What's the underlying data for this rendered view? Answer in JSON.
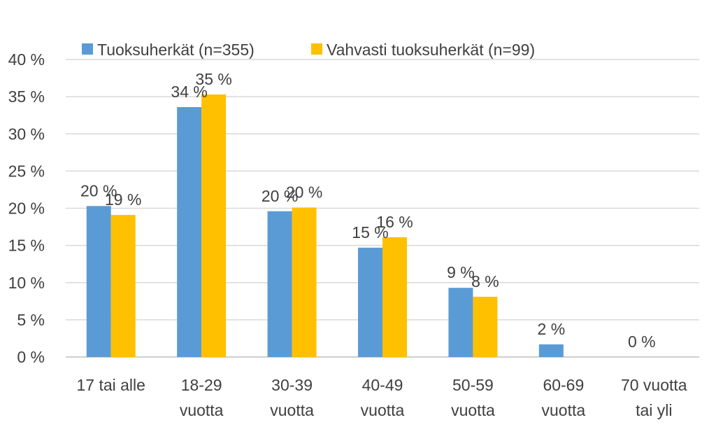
{
  "chart_data": {
    "type": "bar",
    "categories": [
      [
        "17 tai alle"
      ],
      [
        "18-29",
        "vuotta"
      ],
      [
        "30-39",
        "vuotta"
      ],
      [
        "40-49",
        "vuotta"
      ],
      [
        "50-59",
        "vuotta"
      ],
      [
        "60-69",
        "vuotta"
      ],
      [
        "70 vuotta",
        "tai yli"
      ]
    ],
    "series": [
      {
        "name": "Tuoksuherkät (n=355)",
        "color": "#5B9BD5",
        "values": [
          20.3,
          33.6,
          19.6,
          14.7,
          9.3,
          1.7,
          0
        ],
        "labels": [
          "20 %",
          "34 %",
          "20 %",
          "15 %",
          "9 %",
          "2 %",
          "0 %"
        ]
      },
      {
        "name": "Vahvasti tuoksuherkät (n=99)",
        "color": "#FFC000",
        "values": [
          19.1,
          35.3,
          20.1,
          16.1,
          8.1,
          0,
          0
        ],
        "labels": [
          "19 %",
          "35 %",
          "20 %",
          "16 %",
          "8 %",
          "",
          ""
        ]
      }
    ],
    "yticks": [
      "0 %",
      "5 %",
      "10 %",
      "15 %",
      "20 %",
      "25 %",
      "30 %",
      "35 %",
      "40 %"
    ],
    "ylim": [
      0,
      40
    ],
    "grid": true,
    "legend_position": "top",
    "title": "",
    "xlabel": "",
    "ylabel": ""
  }
}
